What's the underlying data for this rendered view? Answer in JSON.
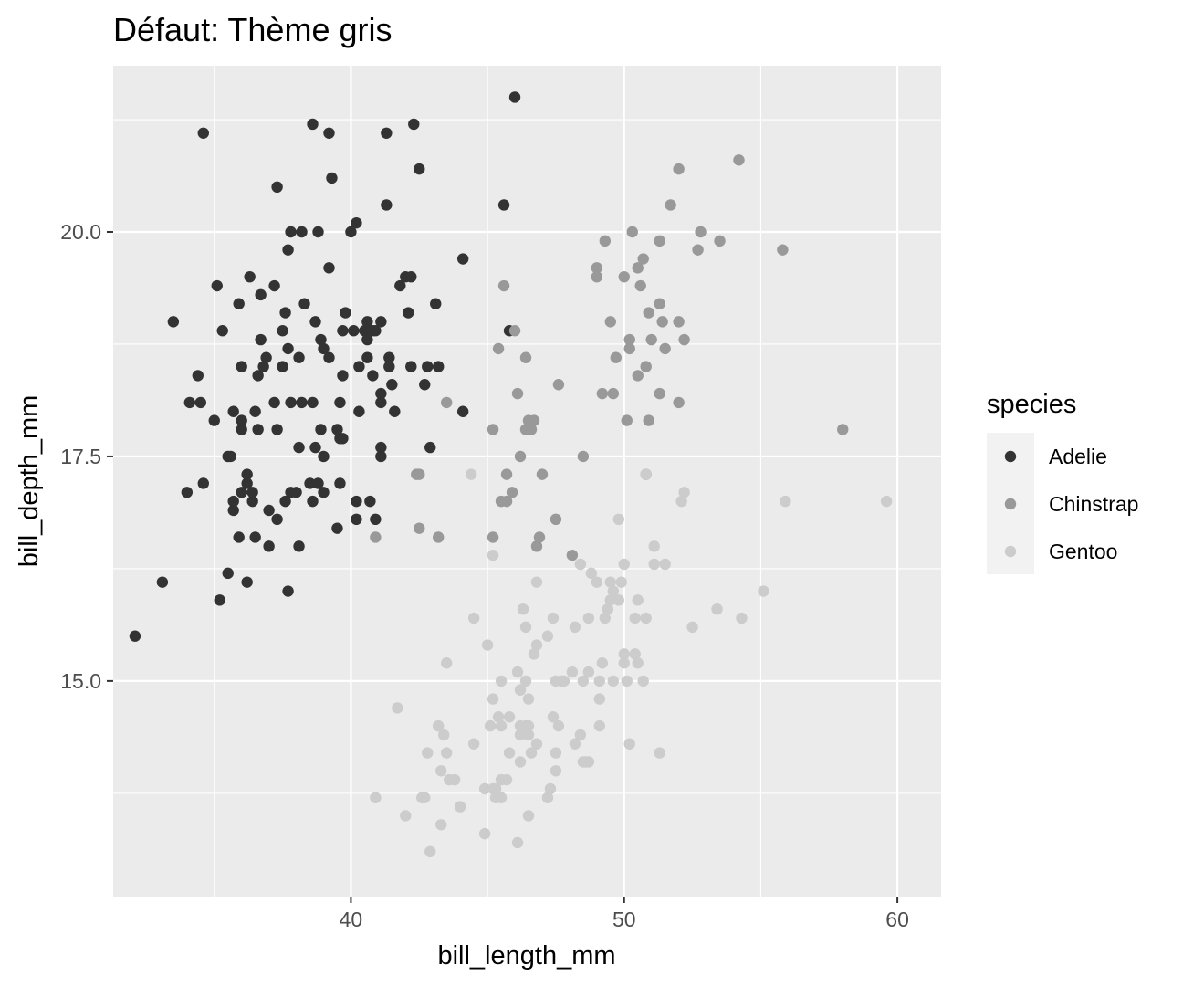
{
  "chart_data": {
    "type": "scatter",
    "title": "Défaut: Thème gris",
    "xlabel": "bill_length_mm",
    "ylabel": "bill_depth_mm",
    "xlim": [
      31.3,
      61.6
    ],
    "ylim": [
      12.6,
      21.85
    ],
    "x_ticks": [
      40,
      50,
      60
    ],
    "x_tick_labels": [
      "40",
      "50",
      "60"
    ],
    "y_ticks": [
      15.0,
      17.5,
      20.0
    ],
    "y_tick_labels": [
      "15.0",
      "17.5",
      "20.0"
    ],
    "grid": true,
    "theme": "gray",
    "legend": {
      "title": "species",
      "position": "right"
    },
    "colors": {
      "panel_background": "#ebebeb",
      "grid": "#ffffff",
      "Adelie": "#333333",
      "Chinstrap": "#999999",
      "Gentoo": "#cccccc"
    },
    "series": [
      {
        "name": "Adelie",
        "color": "#333333",
        "points": [
          [
            32.1,
            15.5
          ],
          [
            33.1,
            16.1
          ],
          [
            33.5,
            19.0
          ],
          [
            34.0,
            17.1
          ],
          [
            34.1,
            18.1
          ],
          [
            34.4,
            18.4
          ],
          [
            34.5,
            18.1
          ],
          [
            34.6,
            21.1
          ],
          [
            34.6,
            17.2
          ],
          [
            35.0,
            17.9
          ],
          [
            35.1,
            19.4
          ],
          [
            35.2,
            15.9
          ],
          [
            35.3,
            18.9
          ],
          [
            35.5,
            16.2
          ],
          [
            35.5,
            17.5
          ],
          [
            35.6,
            17.5
          ],
          [
            35.7,
            16.9
          ],
          [
            35.7,
            17.0
          ],
          [
            35.7,
            18.0
          ],
          [
            35.9,
            16.6
          ],
          [
            35.9,
            19.2
          ],
          [
            36.0,
            17.1
          ],
          [
            36.0,
            17.8
          ],
          [
            36.0,
            17.9
          ],
          [
            36.0,
            18.5
          ],
          [
            36.2,
            16.1
          ],
          [
            36.2,
            17.2
          ],
          [
            36.2,
            17.3
          ],
          [
            36.3,
            19.5
          ],
          [
            36.4,
            17.0
          ],
          [
            36.4,
            17.1
          ],
          [
            36.5,
            16.6
          ],
          [
            36.5,
            18.0
          ],
          [
            36.6,
            17.8
          ],
          [
            36.6,
            18.4
          ],
          [
            36.7,
            18.8
          ],
          [
            36.7,
            19.3
          ],
          [
            36.8,
            18.5
          ],
          [
            36.9,
            18.6
          ],
          [
            37.0,
            16.5
          ],
          [
            37.0,
            16.9
          ],
          [
            37.2,
            18.1
          ],
          [
            37.2,
            19.4
          ],
          [
            37.3,
            16.8
          ],
          [
            37.3,
            17.8
          ],
          [
            37.3,
            20.5
          ],
          [
            37.5,
            18.5
          ],
          [
            37.5,
            18.9
          ],
          [
            37.6,
            17.0
          ],
          [
            37.6,
            19.1
          ],
          [
            37.7,
            16.0
          ],
          [
            37.7,
            18.7
          ],
          [
            37.7,
            19.8
          ],
          [
            37.8,
            17.1
          ],
          [
            37.8,
            18.1
          ],
          [
            37.8,
            20.0
          ],
          [
            38.0,
            17.1
          ],
          [
            38.1,
            16.5
          ],
          [
            38.1,
            17.6
          ],
          [
            38.1,
            18.6
          ],
          [
            38.2,
            18.1
          ],
          [
            38.2,
            20.0
          ],
          [
            38.3,
            19.2
          ],
          [
            38.5,
            17.2
          ],
          [
            38.6,
            17.0
          ],
          [
            38.6,
            18.1
          ],
          [
            38.6,
            21.2
          ],
          [
            38.7,
            17.6
          ],
          [
            38.7,
            19.0
          ],
          [
            38.8,
            17.2
          ],
          [
            38.8,
            20.0
          ],
          [
            38.9,
            17.8
          ],
          [
            38.9,
            18.8
          ],
          [
            39.0,
            17.1
          ],
          [
            39.0,
            17.5
          ],
          [
            39.0,
            18.7
          ],
          [
            39.2,
            18.6
          ],
          [
            39.2,
            19.6
          ],
          [
            39.2,
            21.1
          ],
          [
            39.3,
            20.6
          ],
          [
            39.5,
            16.7
          ],
          [
            39.5,
            17.8
          ],
          [
            39.6,
            17.2
          ],
          [
            39.6,
            17.7
          ],
          [
            39.6,
            18.1
          ],
          [
            39.7,
            17.7
          ],
          [
            39.7,
            18.4
          ],
          [
            39.7,
            18.9
          ],
          [
            39.8,
            19.1
          ],
          [
            40.0,
            20.0
          ],
          [
            40.1,
            18.9
          ],
          [
            40.2,
            16.8
          ],
          [
            40.2,
            17.0
          ],
          [
            40.2,
            20.1
          ],
          [
            40.3,
            18.0
          ],
          [
            40.3,
            18.5
          ],
          [
            40.5,
            18.9
          ],
          [
            40.6,
            18.6
          ],
          [
            40.6,
            18.8
          ],
          [
            40.6,
            19.0
          ],
          [
            40.7,
            17.0
          ],
          [
            40.8,
            18.4
          ],
          [
            40.8,
            18.9
          ],
          [
            40.9,
            16.8
          ],
          [
            40.9,
            18.9
          ],
          [
            41.1,
            17.5
          ],
          [
            41.1,
            17.6
          ],
          [
            41.1,
            18.1
          ],
          [
            41.1,
            18.2
          ],
          [
            41.1,
            19.0
          ],
          [
            41.3,
            20.3
          ],
          [
            41.3,
            21.1
          ],
          [
            41.4,
            18.5
          ],
          [
            41.4,
            18.6
          ],
          [
            41.5,
            18.3
          ],
          [
            41.6,
            18.0
          ],
          [
            41.8,
            19.4
          ],
          [
            42.0,
            19.5
          ],
          [
            42.1,
            19.1
          ],
          [
            42.2,
            18.5
          ],
          [
            42.2,
            19.5
          ],
          [
            42.3,
            21.2
          ],
          [
            42.5,
            20.7
          ],
          [
            42.7,
            18.3
          ],
          [
            42.8,
            18.5
          ],
          [
            42.9,
            17.6
          ],
          [
            43.1,
            19.2
          ],
          [
            43.2,
            18.5
          ],
          [
            44.1,
            18.0
          ],
          [
            44.1,
            19.7
          ],
          [
            45.6,
            20.3
          ],
          [
            45.8,
            18.9
          ],
          [
            46.0,
            21.5
          ]
        ]
      },
      {
        "name": "Chinstrap",
        "color": "#999999",
        "points": [
          [
            40.9,
            16.6
          ],
          [
            42.4,
            17.3
          ],
          [
            42.5,
            16.7
          ],
          [
            42.5,
            17.3
          ],
          [
            43.2,
            16.6
          ],
          [
            43.5,
            18.1
          ],
          [
            45.2,
            16.6
          ],
          [
            45.2,
            17.8
          ],
          [
            45.4,
            18.7
          ],
          [
            45.5,
            17.0
          ],
          [
            45.6,
            19.4
          ],
          [
            45.7,
            17.0
          ],
          [
            45.7,
            17.3
          ],
          [
            45.9,
            17.1
          ],
          [
            46.0,
            18.9
          ],
          [
            46.1,
            18.2
          ],
          [
            46.2,
            17.5
          ],
          [
            46.4,
            18.6
          ],
          [
            46.4,
            17.8
          ],
          [
            46.5,
            17.9
          ],
          [
            46.6,
            17.8
          ],
          [
            46.7,
            17.9
          ],
          [
            46.8,
            16.5
          ],
          [
            46.9,
            16.6
          ],
          [
            47.0,
            17.3
          ],
          [
            47.5,
            16.8
          ],
          [
            47.6,
            18.3
          ],
          [
            48.1,
            16.4
          ],
          [
            48.5,
            17.5
          ],
          [
            49.0,
            19.5
          ],
          [
            49.0,
            19.6
          ],
          [
            49.2,
            18.2
          ],
          [
            49.3,
            19.9
          ],
          [
            49.5,
            19.0
          ],
          [
            49.6,
            18.2
          ],
          [
            49.7,
            18.6
          ],
          [
            50.0,
            19.5
          ],
          [
            50.1,
            17.9
          ],
          [
            50.2,
            18.7
          ],
          [
            50.2,
            18.8
          ],
          [
            50.3,
            20.0
          ],
          [
            50.5,
            18.4
          ],
          [
            50.5,
            19.6
          ],
          [
            50.6,
            19.4
          ],
          [
            50.7,
            19.7
          ],
          [
            50.8,
            17.3
          ],
          [
            50.8,
            18.5
          ],
          [
            50.9,
            17.9
          ],
          [
            50.9,
            19.1
          ],
          [
            51.0,
            18.8
          ],
          [
            51.3,
            18.2
          ],
          [
            51.3,
            19.2
          ],
          [
            51.3,
            19.9
          ],
          [
            51.4,
            19.0
          ],
          [
            51.5,
            18.7
          ],
          [
            51.7,
            20.3
          ],
          [
            52.0,
            18.1
          ],
          [
            52.0,
            19.0
          ],
          [
            52.0,
            20.7
          ],
          [
            52.2,
            18.8
          ],
          [
            52.7,
            19.8
          ],
          [
            52.8,
            20.0
          ],
          [
            53.5,
            19.9
          ],
          [
            54.2,
            20.8
          ],
          [
            55.8,
            19.8
          ],
          [
            58.0,
            17.8
          ]
        ]
      },
      {
        "name": "Gentoo",
        "color": "#cccccc",
        "points": [
          [
            40.9,
            13.7
          ],
          [
            41.7,
            14.7
          ],
          [
            42.0,
            13.5
          ],
          [
            42.6,
            13.7
          ],
          [
            42.7,
            13.7
          ],
          [
            42.8,
            14.2
          ],
          [
            42.9,
            13.1
          ],
          [
            43.2,
            14.5
          ],
          [
            43.3,
            13.4
          ],
          [
            43.3,
            14.0
          ],
          [
            43.4,
            14.4
          ],
          [
            43.5,
            14.2
          ],
          [
            43.5,
            15.2
          ],
          [
            43.6,
            13.9
          ],
          [
            43.8,
            13.9
          ],
          [
            44.0,
            13.6
          ],
          [
            44.4,
            17.3
          ],
          [
            44.5,
            14.3
          ],
          [
            44.5,
            15.7
          ],
          [
            44.9,
            13.3
          ],
          [
            44.9,
            13.8
          ],
          [
            45.0,
            15.4
          ],
          [
            45.1,
            14.5
          ],
          [
            45.2,
            13.8
          ],
          [
            45.2,
            14.8
          ],
          [
            45.2,
            16.4
          ],
          [
            45.3,
            13.7
          ],
          [
            45.3,
            13.8
          ],
          [
            45.4,
            14.6
          ],
          [
            45.5,
            13.7
          ],
          [
            45.5,
            13.9
          ],
          [
            45.5,
            14.5
          ],
          [
            45.5,
            15.0
          ],
          [
            45.7,
            13.9
          ],
          [
            45.8,
            14.2
          ],
          [
            45.8,
            14.6
          ],
          [
            46.1,
            13.2
          ],
          [
            46.1,
            15.1
          ],
          [
            46.2,
            14.1
          ],
          [
            46.2,
            14.4
          ],
          [
            46.2,
            14.5
          ],
          [
            46.2,
            14.9
          ],
          [
            46.3,
            15.8
          ],
          [
            46.4,
            14.5
          ],
          [
            46.4,
            15.0
          ],
          [
            46.4,
            15.6
          ],
          [
            46.5,
            13.5
          ],
          [
            46.5,
            14.4
          ],
          [
            46.5,
            14.5
          ],
          [
            46.5,
            14.8
          ],
          [
            46.6,
            14.2
          ],
          [
            46.7,
            15.3
          ],
          [
            46.8,
            14.3
          ],
          [
            46.8,
            15.4
          ],
          [
            46.8,
            16.1
          ],
          [
            47.2,
            13.7
          ],
          [
            47.2,
            15.5
          ],
          [
            47.3,
            13.8
          ],
          [
            47.4,
            14.6
          ],
          [
            47.4,
            15.7
          ],
          [
            47.5,
            14.0
          ],
          [
            47.5,
            14.2
          ],
          [
            47.5,
            15.0
          ],
          [
            47.6,
            14.5
          ],
          [
            47.7,
            15.0
          ],
          [
            47.8,
            15.0
          ],
          [
            48.1,
            15.1
          ],
          [
            48.2,
            14.3
          ],
          [
            48.2,
            15.6
          ],
          [
            48.4,
            14.4
          ],
          [
            48.4,
            16.3
          ],
          [
            48.5,
            14.1
          ],
          [
            48.5,
            15.0
          ],
          [
            48.6,
            14.1
          ],
          [
            48.7,
            14.1
          ],
          [
            48.7,
            15.1
          ],
          [
            48.7,
            15.7
          ],
          [
            48.8,
            16.2
          ],
          [
            49.0,
            16.1
          ],
          [
            49.1,
            14.5
          ],
          [
            49.1,
            14.8
          ],
          [
            49.1,
            15.0
          ],
          [
            49.2,
            15.2
          ],
          [
            49.3,
            15.7
          ],
          [
            49.4,
            15.8
          ],
          [
            49.5,
            15.9
          ],
          [
            49.5,
            16.1
          ],
          [
            49.6,
            15.0
          ],
          [
            49.6,
            16.0
          ],
          [
            49.8,
            15.9
          ],
          [
            49.8,
            16.8
          ],
          [
            49.9,
            16.1
          ],
          [
            50.0,
            15.2
          ],
          [
            50.0,
            15.3
          ],
          [
            50.0,
            16.3
          ],
          [
            50.1,
            15.0
          ],
          [
            50.2,
            14.3
          ],
          [
            50.4,
            15.3
          ],
          [
            50.4,
            15.7
          ],
          [
            50.5,
            15.2
          ],
          [
            50.5,
            15.9
          ],
          [
            50.7,
            15.0
          ],
          [
            50.8,
            15.7
          ],
          [
            50.8,
            17.3
          ],
          [
            51.1,
            16.3
          ],
          [
            51.1,
            16.5
          ],
          [
            51.3,
            14.2
          ],
          [
            51.5,
            16.3
          ],
          [
            52.1,
            17.0
          ],
          [
            52.2,
            17.1
          ],
          [
            52.5,
            15.6
          ],
          [
            53.4,
            15.8
          ],
          [
            54.3,
            15.7
          ],
          [
            55.1,
            16.0
          ],
          [
            55.9,
            17.0
          ],
          [
            59.6,
            17.0
          ]
        ]
      }
    ]
  }
}
